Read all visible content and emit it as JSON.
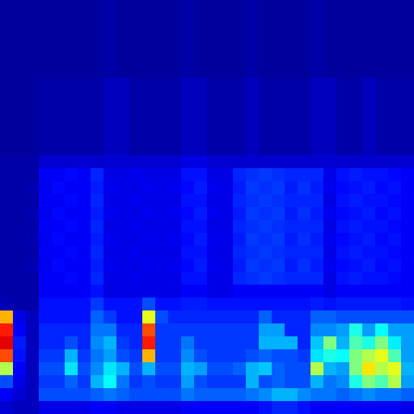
{
  "chart_data": {
    "type": "heatmap",
    "tick_labels": false,
    "zlim": [
      0,
      100
    ],
    "cells": [
      [
        3,
        3,
        3,
        3,
        3,
        3,
        3,
        3,
        4,
        3,
        3,
        3,
        3,
        3,
        4,
        3,
        3,
        3,
        3,
        4,
        3,
        3,
        3,
        3,
        4,
        3,
        3,
        3,
        3,
        3,
        3,
        3
      ],
      [
        3,
        3,
        3,
        3,
        3,
        3,
        3,
        3,
        4,
        3,
        3,
        3,
        3,
        3,
        4,
        3,
        3,
        3,
        3,
        4,
        3,
        3,
        3,
        3,
        4,
        3,
        3,
        3,
        3,
        3,
        3,
        3
      ],
      [
        3,
        3,
        3,
        3,
        3,
        3,
        3,
        3,
        4,
        3,
        3,
        3,
        3,
        3,
        4,
        3,
        3,
        3,
        3,
        4,
        3,
        3,
        3,
        3,
        4,
        3,
        3,
        3,
        3,
        3,
        3,
        3
      ],
      [
        3,
        3,
        3,
        3,
        3,
        3,
        3,
        3,
        4,
        3,
        3,
        3,
        3,
        3,
        4,
        3,
        3,
        3,
        3,
        4,
        3,
        3,
        3,
        3,
        4,
        3,
        3,
        3,
        3,
        3,
        3,
        3
      ],
      [
        3,
        3,
        3,
        3,
        3,
        3,
        3,
        3,
        4,
        3,
        3,
        3,
        3,
        3,
        4,
        3,
        3,
        3,
        3,
        4,
        3,
        3,
        3,
        3,
        4,
        3,
        3,
        3,
        3,
        3,
        3,
        3
      ],
      [
        3,
        3,
        3,
        3,
        3,
        3,
        3,
        3,
        4,
        3,
        3,
        3,
        3,
        3,
        4,
        3,
        3,
        3,
        3,
        4,
        3,
        3,
        3,
        3,
        4,
        3,
        3,
        3,
        3,
        3,
        3,
        3
      ],
      [
        3,
        3,
        3,
        4,
        4,
        4,
        4,
        4,
        6,
        6,
        4,
        4,
        4,
        4,
        6,
        6,
        4,
        4,
        4,
        6,
        4,
        4,
        4,
        4,
        6,
        6,
        4,
        4,
        6,
        4,
        4,
        4
      ],
      [
        3,
        3,
        3,
        4,
        4,
        4,
        4,
        4,
        6,
        6,
        4,
        4,
        4,
        4,
        6,
        6,
        4,
        4,
        4,
        6,
        4,
        4,
        4,
        4,
        6,
        6,
        4,
        4,
        6,
        4,
        4,
        4
      ],
      [
        3,
        3,
        3,
        4,
        4,
        4,
        4,
        4,
        6,
        6,
        4,
        4,
        4,
        4,
        6,
        6,
        4,
        4,
        4,
        6,
        4,
        4,
        4,
        4,
        6,
        6,
        4,
        4,
        6,
        4,
        4,
        4
      ],
      [
        3,
        3,
        3,
        4,
        4,
        4,
        4,
        4,
        6,
        6,
        4,
        4,
        4,
        4,
        6,
        6,
        4,
        4,
        4,
        6,
        4,
        4,
        4,
        4,
        6,
        6,
        4,
        4,
        6,
        4,
        4,
        4
      ],
      [
        3,
        3,
        3,
        4,
        4,
        4,
        4,
        4,
        6,
        6,
        4,
        4,
        4,
        4,
        6,
        6,
        4,
        4,
        4,
        6,
        4,
        4,
        4,
        4,
        6,
        6,
        4,
        4,
        6,
        4,
        4,
        4
      ],
      [
        3,
        3,
        3,
        4,
        4,
        4,
        4,
        4,
        6,
        6,
        4,
        4,
        4,
        4,
        6,
        6,
        4,
        4,
        4,
        6,
        4,
        4,
        4,
        4,
        6,
        6,
        4,
        4,
        6,
        4,
        4,
        4
      ],
      [
        4,
        4,
        4,
        8,
        8,
        8,
        8,
        8,
        8,
        8,
        8,
        8,
        8,
        8,
        10,
        10,
        8,
        8,
        8,
        8,
        8,
        8,
        8,
        8,
        8,
        8,
        8,
        8,
        8,
        8,
        8,
        8
      ],
      [
        4,
        4,
        4,
        12,
        12,
        13,
        12,
        16,
        10,
        10,
        11,
        10,
        10,
        10,
        14,
        14,
        10,
        10,
        16,
        17,
        18,
        17,
        16,
        16,
        16,
        10,
        14,
        15,
        14,
        14,
        13,
        12
      ],
      [
        4,
        4,
        5,
        11,
        13,
        12,
        12,
        15,
        11,
        10,
        10,
        11,
        10,
        11,
        13,
        15,
        11,
        10,
        15,
        18,
        17,
        18,
        15,
        17,
        15,
        11,
        13,
        14,
        15,
        13,
        14,
        12
      ],
      [
        4,
        4,
        4,
        12,
        12,
        13,
        12,
        16,
        10,
        10,
        11,
        10,
        10,
        10,
        14,
        14,
        10,
        10,
        16,
        17,
        18,
        17,
        16,
        16,
        16,
        10,
        14,
        15,
        14,
        14,
        13,
        12
      ],
      [
        4,
        4,
        5,
        11,
        13,
        12,
        12,
        15,
        11,
        10,
        10,
        11,
        10,
        11,
        13,
        15,
        11,
        10,
        15,
        18,
        17,
        18,
        15,
        17,
        15,
        11,
        13,
        14,
        15,
        13,
        14,
        12
      ],
      [
        4,
        4,
        4,
        12,
        12,
        13,
        12,
        16,
        10,
        10,
        11,
        10,
        10,
        10,
        14,
        14,
        10,
        10,
        16,
        17,
        18,
        17,
        16,
        16,
        16,
        10,
        14,
        15,
        14,
        14,
        13,
        12
      ],
      [
        4,
        4,
        5,
        11,
        13,
        12,
        12,
        15,
        11,
        10,
        10,
        11,
        10,
        11,
        13,
        15,
        11,
        10,
        15,
        18,
        17,
        18,
        15,
        17,
        15,
        11,
        13,
        14,
        15,
        13,
        14,
        12
      ],
      [
        4,
        4,
        4,
        12,
        12,
        13,
        12,
        16,
        10,
        10,
        11,
        10,
        10,
        10,
        14,
        14,
        10,
        10,
        16,
        17,
        18,
        17,
        16,
        16,
        16,
        10,
        14,
        15,
        14,
        14,
        13,
        12
      ],
      [
        4,
        4,
        5,
        11,
        13,
        12,
        12,
        15,
        11,
        10,
        10,
        11,
        10,
        11,
        13,
        15,
        11,
        10,
        15,
        18,
        17,
        18,
        15,
        17,
        15,
        11,
        13,
        14,
        15,
        13,
        14,
        12
      ],
      [
        4,
        4,
        4,
        12,
        12,
        13,
        12,
        16,
        10,
        10,
        11,
        10,
        10,
        10,
        14,
        14,
        10,
        10,
        16,
        17,
        18,
        17,
        16,
        16,
        16,
        10,
        14,
        15,
        14,
        14,
        13,
        12
      ],
      [
        4,
        4,
        4,
        12,
        12,
        12,
        12,
        14,
        10,
        10,
        10,
        10,
        10,
        10,
        12,
        12,
        10,
        10,
        12,
        12,
        12,
        12,
        12,
        12,
        12,
        10,
        12,
        12,
        12,
        12,
        12,
        12
      ],
      [
        5,
        4,
        4,
        14,
        14,
        14,
        14,
        18,
        14,
        14,
        14,
        20,
        14,
        14,
        15,
        15,
        14,
        14,
        14,
        14,
        14,
        14,
        14,
        14,
        15,
        14,
        15,
        15,
        15,
        15,
        15,
        14
      ],
      [
        70,
        10,
        6,
        14,
        14,
        14,
        14,
        22,
        18,
        14,
        14,
        60,
        20,
        16,
        16,
        16,
        16,
        16,
        16,
        16,
        22,
        16,
        16,
        16,
        22,
        22,
        20,
        20,
        20,
        20,
        20,
        20
      ],
      [
        85,
        12,
        6,
        16,
        16,
        16,
        16,
        24,
        24,
        16,
        16,
        80,
        18,
        18,
        18,
        18,
        18,
        18,
        18,
        18,
        28,
        28,
        16,
        16,
        26,
        26,
        28,
        40,
        28,
        38,
        28,
        28
      ],
      [
        90,
        15,
        6,
        16,
        16,
        20,
        16,
        26,
        30,
        18,
        16,
        85,
        18,
        18,
        24,
        18,
        18,
        18,
        18,
        18,
        30,
        30,
        30,
        16,
        32,
        50,
        30,
        45,
        40,
        50,
        36,
        28
      ],
      [
        80,
        14,
        6,
        18,
        18,
        30,
        18,
        24,
        28,
        20,
        18,
        70,
        18,
        18,
        26,
        20,
        18,
        18,
        18,
        20,
        22,
        20,
        20,
        18,
        35,
        40,
        38,
        50,
        55,
        60,
        45,
        28
      ],
      [
        55,
        12,
        6,
        20,
        20,
        35,
        20,
        26,
        35,
        30,
        20,
        30,
        20,
        20,
        30,
        28,
        20,
        20,
        22,
        30,
        32,
        22,
        20,
        20,
        55,
        30,
        28,
        50,
        65,
        55,
        60,
        30
      ],
      [
        20,
        10,
        6,
        18,
        18,
        22,
        18,
        30,
        38,
        24,
        18,
        20,
        18,
        18,
        28,
        20,
        18,
        18,
        18,
        30,
        20,
        22,
        20,
        20,
        30,
        24,
        26,
        40,
        50,
        45,
        55,
        28
      ],
      [
        12,
        8,
        6,
        20,
        20,
        20,
        20,
        22,
        24,
        22,
        20,
        20,
        20,
        20,
        24,
        22,
        22,
        22,
        22,
        24,
        26,
        30,
        30,
        26,
        24,
        24,
        22,
        24,
        26,
        24,
        24,
        22
      ],
      [
        8,
        6,
        6,
        10,
        10,
        10,
        10,
        12,
        12,
        10,
        10,
        10,
        10,
        10,
        12,
        12,
        12,
        12,
        12,
        12,
        14,
        16,
        16,
        14,
        12,
        12,
        12,
        12,
        12,
        12,
        12,
        10
      ]
    ]
  }
}
